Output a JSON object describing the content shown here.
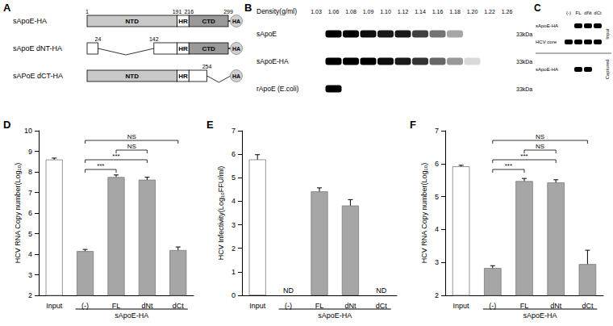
{
  "chart_data": [
    {
      "type": "bar",
      "title": "D",
      "y_label": "HCV RNA Copy number(Log₁₀)",
      "categories": [
        "Input",
        "(-)",
        "FL",
        "dNt",
        "dCt"
      ],
      "values": [
        8.6,
        4.15,
        7.75,
        7.62,
        4.2
      ],
      "errors": [
        0.07,
        0.08,
        0.1,
        0.12,
        0.15
      ],
      "colors": [
        "#ffffff",
        "#a6a6a6",
        "#a6a6a6",
        "#a6a6a6",
        "#a6a6a6"
      ],
      "ylim": [
        2,
        10
      ],
      "yticks": [
        2,
        3,
        4,
        5,
        6,
        7,
        8,
        9,
        10
      ],
      "grid": false,
      "group": {
        "label": "sApoE-HA",
        "from": "(-)",
        "to": "dCt"
      },
      "brackets": [
        {
          "from": "(-)",
          "to": "dCt",
          "label": "NS"
        },
        {
          "from": "FL",
          "to": "dNt",
          "label": "NS"
        },
        {
          "from": "(-)",
          "to": "dNt",
          "label": "***"
        },
        {
          "from": "(-)",
          "to": "FL",
          "label": "***"
        }
      ]
    },
    {
      "type": "bar",
      "title": "E",
      "y_label": "HCV Infectivity(Log₁₀FFU/ml)",
      "categories": [
        "Input",
        "(-)",
        "FL",
        "dNt",
        "dCt"
      ],
      "values": [
        5.78,
        null,
        4.42,
        3.82,
        null
      ],
      "value_labels": [
        null,
        "ND",
        null,
        null,
        "ND"
      ],
      "errors": [
        0.2,
        null,
        0.15,
        0.25,
        null
      ],
      "colors": [
        "#ffffff",
        "#a6a6a6",
        "#a6a6a6",
        "#a6a6a6",
        "#a6a6a6"
      ],
      "ylim": [
        0,
        7
      ],
      "yticks": [
        0,
        1,
        2,
        3,
        4,
        5,
        6,
        7
      ],
      "grid": false,
      "group": {
        "label": "sApoE-HA",
        "from": "(-)",
        "to": "dCt"
      },
      "brackets": []
    },
    {
      "type": "bar",
      "title": "F",
      "y_label": "HCV RNA Copy number(Log₁₀)",
      "categories": [
        "Input",
        "(-)",
        "FL",
        "dNt",
        "dCt"
      ],
      "values": [
        5.92,
        2.83,
        5.47,
        5.43,
        2.95
      ],
      "errors": [
        0.03,
        0.07,
        0.08,
        0.08,
        0.42
      ],
      "colors": [
        "#ffffff",
        "#a6a6a6",
        "#a6a6a6",
        "#a6a6a6",
        "#a6a6a6"
      ],
      "ylim": [
        2,
        7
      ],
      "yticks": [
        2,
        3,
        4,
        5,
        6,
        7
      ],
      "grid": false,
      "group": {
        "label": "sApoE-HA",
        "from": "(-)",
        "to": "dCt"
      },
      "brackets": [
        {
          "from": "(-)",
          "to": "dCt",
          "label": "NS"
        },
        {
          "from": "FL",
          "to": "dNt",
          "label": "NS"
        },
        {
          "from": "(-)",
          "to": "dNt",
          "label": "***"
        },
        {
          "from": "(-)",
          "to": "FL",
          "label": "***"
        }
      ]
    }
  ],
  "diagram": {
    "letter": "A",
    "constructs": [
      {
        "label": "sApoE-HA",
        "tag": "HA",
        "numbers": [
          1,
          191,
          216,
          299
        ],
        "segments": [
          {
            "from": 1,
            "to": 191,
            "text": "NTD",
            "color": "#c8c8c8"
          },
          {
            "from": 191,
            "to": 216,
            "text": "HR",
            "color": "#ffffff"
          },
          {
            "from": 216,
            "to": 299,
            "text": "CTD",
            "color": "#9a9a9a"
          }
        ]
      },
      {
        "label": "sApoE dNT-HA",
        "tag": "HA",
        "numbers": [
          24,
          142
        ],
        "segments": [
          {
            "from": 1,
            "to": 24,
            "color": "#ffffff"
          },
          {
            "from": 142,
            "to": 191,
            "color": "#ffffff"
          },
          {
            "from": 191,
            "to": 216,
            "text": "HR",
            "color": "#ffffff"
          },
          {
            "from": 216,
            "to": 299,
            "text": "CTD",
            "color": "#9a9a9a"
          }
        ]
      },
      {
        "label": "sAPoE dCT-HA",
        "tag": "HA",
        "numbers": [
          254
        ],
        "segments": [
          {
            "from": 1,
            "to": 191,
            "text": "NTD",
            "color": "#c8c8c8"
          },
          {
            "from": 191,
            "to": 216,
            "text": "HR",
            "color": "#ffffff"
          },
          {
            "from": 216,
            "to": 254,
            "color": "#ffffff"
          }
        ]
      }
    ]
  },
  "blot_B": {
    "letter": "B",
    "header_label": "Density(g/ml)",
    "lanes": [
      "1.03",
      "1.06",
      "1.08",
      "1.09",
      "1.10",
      "1.12",
      "1.14",
      "1.16",
      "1.18",
      "1.20",
      "1.22",
      "1.26"
    ],
    "rows": [
      {
        "label": "sApoE",
        "size": "33kDa",
        "bands": [
          0,
          1,
          1,
          0.95,
          0.9,
          0.9,
          0.75,
          0.55,
          0.35,
          0,
          0,
          0
        ]
      },
      {
        "label": "sApoE-HA",
        "size": "33kDa",
        "bands": [
          0,
          1,
          1,
          1,
          0.95,
          0.9,
          0.8,
          0.6,
          0.4,
          0.15,
          0,
          0
        ]
      },
      {
        "label": "rApoE (E.coli)",
        "size": "33kDa",
        "bands": [
          0,
          1,
          0,
          0,
          0,
          0,
          0,
          0,
          0,
          0,
          0,
          0
        ]
      }
    ]
  },
  "blot_C": {
    "letter": "C",
    "lanes": [
      "(-)",
      "FL",
      "dNt",
      "dCt"
    ],
    "sections": [
      {
        "label": "Input",
        "rows": [
          {
            "label": "sApoE-HA",
            "bands": [
              0,
              1,
              1,
              1
            ]
          },
          {
            "label": "HCV core",
            "bands": [
              1,
              1,
              1,
              1
            ]
          }
        ]
      },
      {
        "label": "Captured",
        "rows": [
          {
            "label": "sApoE-HA",
            "bands": [
              0,
              1,
              1,
              0
            ]
          }
        ]
      }
    ]
  }
}
